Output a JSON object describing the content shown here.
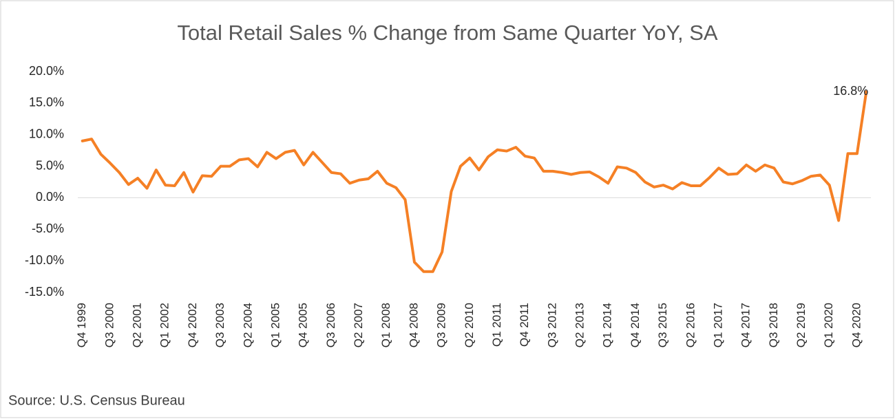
{
  "chart_data": {
    "type": "line",
    "title": "Total Retail Sales % Change from Same Quarter YoY, SA",
    "source": "Source: U.S. Census Bureau",
    "categories": [
      "Q4 1999",
      null,
      null,
      "Q3 2000",
      null,
      null,
      "Q2 2001",
      null,
      null,
      "Q1 2002",
      null,
      null,
      "Q4 2002",
      null,
      null,
      "Q3 2003",
      null,
      null,
      "Q2 2004",
      null,
      null,
      "Q1 2005",
      null,
      null,
      "Q4 2005",
      null,
      null,
      "Q3 2006",
      null,
      null,
      "Q2 2007",
      null,
      null,
      "Q1 2008",
      null,
      null,
      "Q4 2008",
      null,
      null,
      "Q3 2009",
      null,
      null,
      "Q2 2010",
      null,
      null,
      "Q1 2011",
      null,
      null,
      "Q4 2011",
      null,
      null,
      "Q3 2012",
      null,
      null,
      "Q2 2013",
      null,
      null,
      "Q1 2014",
      null,
      null,
      "Q4 2014",
      null,
      null,
      "Q3 2015",
      null,
      null,
      "Q2 2016",
      null,
      null,
      "Q1 2017",
      null,
      null,
      "Q4 2017",
      null,
      null,
      "Q3 2018",
      null,
      null,
      "Q2 2019",
      null,
      null,
      "Q1 2020",
      null,
      null,
      "Q4 2020",
      null
    ],
    "values": [
      9.0,
      9.3,
      6.9,
      5.5,
      4.0,
      2.1,
      3.1,
      1.5,
      4.4,
      2.0,
      1.9,
      4.0,
      0.9,
      3.5,
      3.4,
      5.0,
      5.0,
      6.0,
      6.2,
      4.9,
      7.2,
      6.2,
      7.2,
      7.5,
      5.2,
      7.2,
      5.6,
      4.0,
      3.8,
      2.3,
      2.8,
      3.0,
      4.2,
      2.3,
      1.6,
      -0.3,
      -10.2,
      -11.7,
      -11.7,
      -8.6,
      1.0,
      5.0,
      6.3,
      4.4,
      6.5,
      7.6,
      7.4,
      8.0,
      6.6,
      6.3,
      4.2,
      4.2,
      4.0,
      3.7,
      4.0,
      4.1,
      3.3,
      2.3,
      4.9,
      4.7,
      4.0,
      2.5,
      1.7,
      2.0,
      1.4,
      2.4,
      1.9,
      1.9,
      3.2,
      4.7,
      3.7,
      3.8,
      5.2,
      4.2,
      5.2,
      4.7,
      2.5,
      2.2,
      2.7,
      3.4,
      3.6,
      2.0,
      -3.6,
      7.0,
      7.0,
      16.8
    ],
    "value_labels": [
      null,
      null,
      null,
      null,
      null,
      null,
      null,
      null,
      null,
      null,
      null,
      null,
      null,
      null,
      null,
      null,
      null,
      null,
      null,
      null,
      null,
      null,
      null,
      null,
      null,
      null,
      null,
      null,
      null,
      null,
      null,
      null,
      null,
      null,
      null,
      null,
      null,
      null,
      null,
      null,
      null,
      null,
      null,
      null,
      null,
      null,
      null,
      null,
      null,
      null,
      null,
      null,
      null,
      null,
      null,
      null,
      null,
      null,
      null,
      null,
      null,
      null,
      null,
      null,
      null,
      null,
      null,
      null,
      null,
      null,
      null,
      null,
      null,
      null,
      null,
      null,
      null,
      null,
      null,
      null,
      null,
      null,
      null,
      null,
      null,
      "16.8%"
    ],
    "color": "#f58025",
    "ylim": [
      -15,
      20
    ],
    "yticks": [
      {
        "value": -15,
        "label": "-15.0%"
      },
      {
        "value": -10,
        "label": "-10.0%"
      },
      {
        "value": -5,
        "label": "-5.0%"
      },
      {
        "value": 0,
        "label": "0.0%"
      },
      {
        "value": 5,
        "label": "5.0%"
      },
      {
        "value": 10,
        "label": "10.0%"
      },
      {
        "value": 15,
        "label": "15.0%"
      },
      {
        "value": 20,
        "label": "20.0%"
      }
    ],
    "grid": false
  }
}
